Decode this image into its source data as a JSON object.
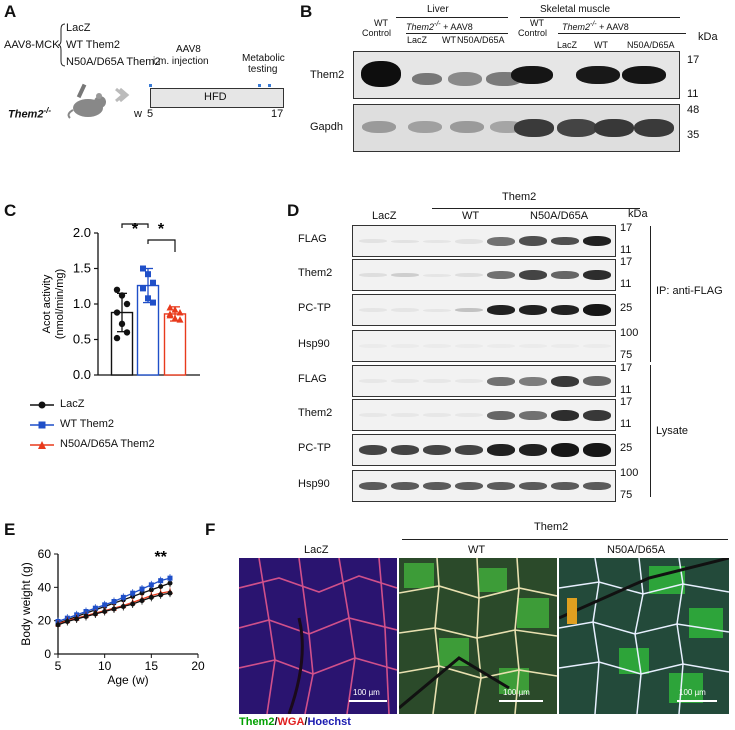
{
  "panels": {
    "a": "A",
    "b": "B",
    "c": "C",
    "d": "D",
    "e": "E",
    "f": "F"
  },
  "panel_a": {
    "vector": "AAV8-MCK",
    "constructs": [
      "LacZ",
      "WT Them2",
      "N50A/D65A Them2"
    ],
    "genotype": "Them2",
    "genotype_sup": "-/-",
    "injection": [
      "AAV8",
      "i.m. injection"
    ],
    "testing": [
      "Metabolic",
      "testing"
    ],
    "diet": "HFD",
    "week_label": "w",
    "week_start": "5",
    "week_end": "17"
  },
  "panel_b": {
    "tissue_liver": "Liver",
    "tissue_muscle": "Skeletal muscle",
    "group_prefix": "Them2",
    "group_sup": "-/-",
    "group_suffix": " + AAV8",
    "wt_control": [
      "WT",
      "Control"
    ],
    "lanes_liver": [
      "LacZ",
      "WT",
      "N50A/D65A"
    ],
    "lanes_muscle": [
      "LacZ",
      "WT",
      "N50A/D65A"
    ],
    "kda": "kDa",
    "rows": [
      {
        "label": "Them2",
        "markers": [
          "17",
          "11"
        ]
      },
      {
        "label": "Gapdh",
        "markers": [
          "48",
          "35"
        ]
      }
    ]
  },
  "panel_c": {
    "chart_data": {
      "type": "bar",
      "ylabel": [
        "Acot activity",
        "(nmol/min/mg)"
      ],
      "ylim": [
        0,
        2.0
      ],
      "yticks": [
        "0.0",
        "0.5",
        "1.0",
        "1.5",
        "2.0"
      ],
      "categories": [
        "LacZ",
        "WT Them2",
        "N50A/D65A Them2"
      ],
      "values": [
        0.88,
        1.26,
        0.86
      ],
      "errors": [
        0.27,
        0.24,
        0.1
      ],
      "points": [
        [
          1.2,
          1.12,
          1.0,
          0.88,
          0.72,
          0.6,
          0.52
        ],
        [
          1.5,
          1.42,
          1.3,
          1.22,
          1.08,
          1.02
        ],
        [
          0.95,
          0.92,
          0.88,
          0.84,
          0.8,
          0.78,
          0.86
        ]
      ],
      "colors": [
        "#111111",
        "#1f4fc8",
        "#e83a1c"
      ],
      "significance": [
        "*",
        "*"
      ],
      "legend": [
        "LacZ",
        "WT Them2",
        "N50A/D65A Them2"
      ]
    }
  },
  "panel_d": {
    "group": "Them2",
    "lanes": [
      "LacZ",
      "WT",
      "N50A/D65A"
    ],
    "kda": "kDa",
    "rows": [
      {
        "label": "FLAG",
        "markers": [
          "17",
          "11"
        ]
      },
      {
        "label": "Them2",
        "markers": [
          "17",
          "11"
        ]
      },
      {
        "label": "PC-TP",
        "markers": [
          "25"
        ]
      },
      {
        "label": "Hsp90",
        "markers": [
          "100",
          "75"
        ]
      },
      {
        "label": "FLAG",
        "markers": [
          "17",
          "11"
        ]
      },
      {
        "label": "Them2",
        "markers": [
          "17",
          "11"
        ]
      },
      {
        "label": "PC-TP",
        "markers": [
          "25"
        ]
      },
      {
        "label": "Hsp90",
        "markers": [
          "100",
          "75"
        ]
      }
    ],
    "ip_label": "IP: anti-FLAG",
    "lysate_label": "Lysate"
  },
  "panel_e": {
    "chart_data": {
      "type": "line",
      "ylabel": "Body weight (g)",
      "xlabel": "Age (w)",
      "xlim": [
        5,
        20
      ],
      "ylim": [
        0,
        60
      ],
      "xticks": [
        "5",
        "10",
        "15",
        "20"
      ],
      "yticks": [
        "0",
        "20",
        "40",
        "60"
      ],
      "x": [
        5,
        6,
        7,
        8,
        9,
        10,
        11,
        12,
        13,
        14,
        15,
        16,
        17
      ],
      "series": [
        {
          "values": [
            18.5,
            20.5,
            22.5,
            24.5,
            26.5,
            28.5,
            30.5,
            32.5,
            34.5,
            36.5,
            38.5,
            40.5,
            42.5
          ]
        },
        {
          "values": [
            19.5,
            21.5,
            23.5,
            25.5,
            27.5,
            29.5,
            31.5,
            34.0,
            36.5,
            39.0,
            41.5,
            44.0,
            45.5
          ]
        },
        {
          "values": [
            18.0,
            20.0,
            21.5,
            23.0,
            24.5,
            26.0,
            27.5,
            29.0,
            31.0,
            33.0,
            35.0,
            36.5,
            37.5
          ]
        },
        {
          "values": [
            17.5,
            19.5,
            21.0,
            22.5,
            24.0,
            25.5,
            27.0,
            28.5,
            30.0,
            32.0,
            34.0,
            35.5,
            36.5
          ]
        }
      ],
      "colors": [
        "#111111",
        "#1f4fc8",
        "#e83a1c",
        "#111111"
      ],
      "significance": "**"
    }
  },
  "panel_f": {
    "group": "Them2",
    "columns": [
      "LacZ",
      "WT",
      "N50A/D65A"
    ],
    "scale": "100 µm",
    "stain": [
      {
        "text": "Them2",
        "color": "#00a000"
      },
      {
        "text": "/",
        "color": "#111111"
      },
      {
        "text": "WGA",
        "color": "#e01e1e"
      },
      {
        "text": "/",
        "color": "#111111"
      },
      {
        "text": "Hoechst",
        "color": "#1a1ab0"
      }
    ]
  }
}
